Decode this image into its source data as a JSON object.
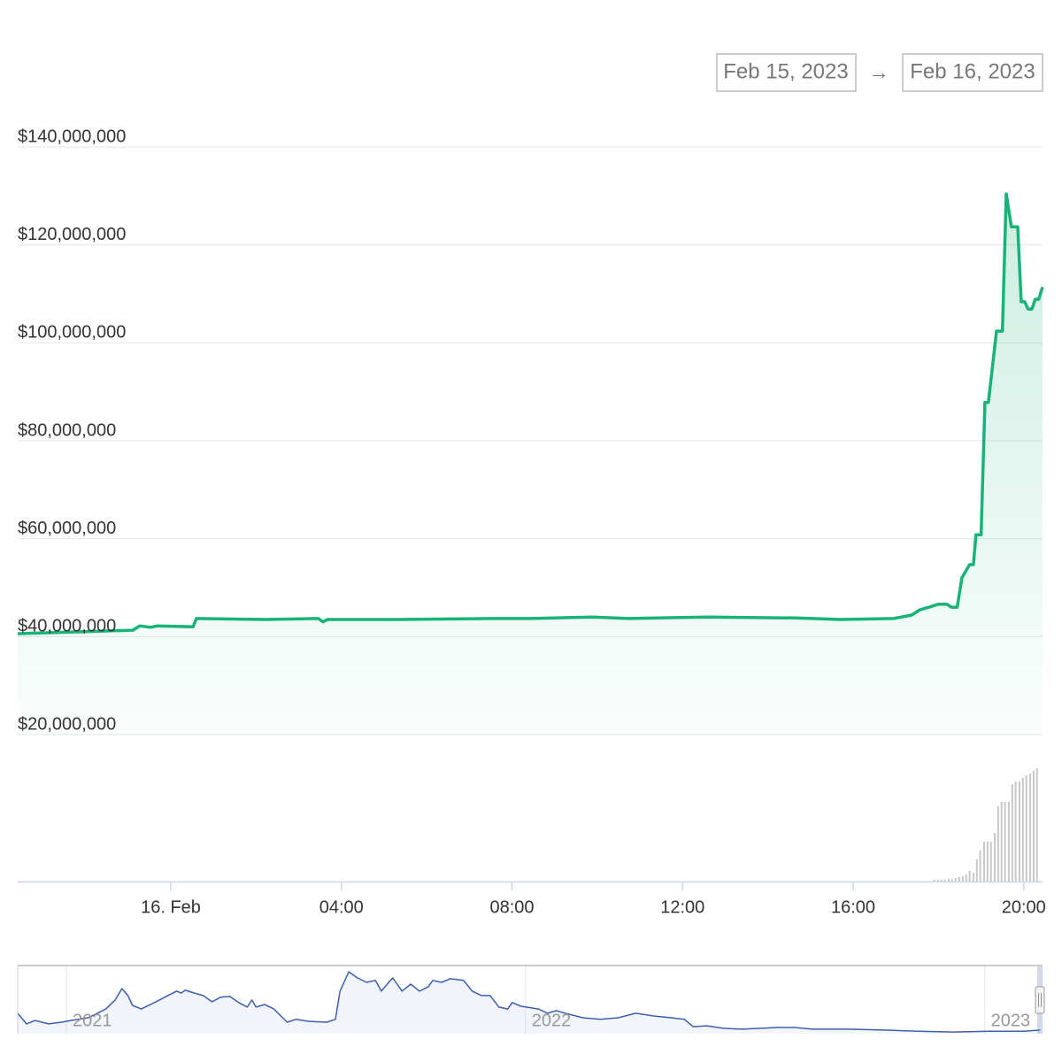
{
  "range_selector": {
    "from": "Feb 15, 2023",
    "separator": "→",
    "to": "Feb 16, 2023"
  },
  "chart_data": [
    {
      "type": "area",
      "color": "#19b37a",
      "x": [
        -3.59,
        -0.89,
        -0.73,
        -0.48,
        -0.31,
        0.52,
        0.6,
        2.22,
        3.46,
        3.57,
        3.67,
        5.33,
        7.61,
        8.44,
        9.9,
        10.73,
        12.59,
        14.67,
        15.71,
        16.95,
        17.37,
        17.57,
        17.78,
        17.99,
        18.2,
        18.3,
        18.44,
        18.55,
        18.73,
        18.82,
        18.88,
        19.0,
        19.09,
        19.17,
        19.36,
        19.5,
        19.59,
        19.71,
        19.86,
        19.94,
        20.02,
        20.1,
        20.19,
        20.27,
        20.35,
        20.44
      ],
      "values": [
        40600000,
        41300000,
        42200000,
        41900000,
        42200000,
        42000000,
        43700000,
        43500000,
        43700000,
        43000000,
        43500000,
        43500000,
        43700000,
        43700000,
        44000000,
        43700000,
        44000000,
        43800000,
        43500000,
        43700000,
        44400000,
        45500000,
        46000000,
        46600000,
        46600000,
        46000000,
        46000000,
        52000000,
        54700000,
        54700000,
        60800000,
        60800000,
        87800000,
        87800000,
        102400000,
        102400000,
        130400000,
        123700000,
        123700000,
        108400000,
        108400000,
        106900000,
        106900000,
        108900000,
        108900000,
        111400000
      ],
      "xlim": [
        -3.59,
        20.44
      ],
      "xticks": [
        {
          "value": 0,
          "label": "16. Feb"
        },
        {
          "value": 4,
          "label": "04:00"
        },
        {
          "value": 8,
          "label": "08:00"
        },
        {
          "value": 12,
          "label": "12:00"
        },
        {
          "value": 16,
          "label": "16:00"
        },
        {
          "value": 20,
          "label": "20:00"
        }
      ],
      "ylim": [
        20000000,
        140000000
      ],
      "yticks": [
        {
          "value": 20000000,
          "label": "$20,000,000"
        },
        {
          "value": 40000000,
          "label": "$40,000,000"
        },
        {
          "value": 60000000,
          "label": "$60,000,000"
        },
        {
          "value": 80000000,
          "label": "$80,000,000"
        },
        {
          "value": 100000000,
          "label": "$100,000,000"
        },
        {
          "value": 120000000,
          "label": "$120,000,000"
        },
        {
          "value": 140000000,
          "label": "$140,000,000"
        }
      ],
      "grid": true
    },
    {
      "type": "bar",
      "color": "#c8c8c8",
      "x": [
        17.9,
        17.99,
        18.07,
        18.15,
        18.24,
        18.32,
        18.4,
        18.49,
        18.57,
        18.65,
        18.73,
        18.82,
        18.9,
        18.98,
        19.07,
        19.15,
        19.23,
        19.32,
        19.4,
        19.48,
        19.56,
        19.65,
        19.73,
        19.81,
        19.9,
        19.98,
        20.06,
        20.15,
        20.23,
        20.31
      ],
      "values": [
        2,
        2,
        2,
        2,
        3,
        3,
        4,
        5,
        6,
        8,
        12,
        10,
        25,
        35,
        45,
        45,
        45,
        55,
        85,
        90,
        90,
        90,
        110,
        113,
        113,
        117,
        120,
        122,
        125,
        128
      ],
      "xlim": [
        -3.59,
        20.44
      ],
      "ylim": [
        0,
        131
      ]
    },
    {
      "type": "area",
      "color": "#3d5fb0",
      "x": [
        2020.894,
        2020.913,
        2020.932,
        2020.961,
        2020.99,
        2021.009,
        2021.048,
        2021.086,
        2021.106,
        2021.121,
        2021.134,
        2021.144,
        2021.163,
        2021.192,
        2021.221,
        2021.24,
        2021.25,
        2021.259,
        2021.279,
        2021.298,
        2021.317,
        2021.336,
        2021.356,
        2021.375,
        2021.394,
        2021.404,
        2021.413,
        2021.432,
        2021.452,
        2021.471,
        2021.481,
        2021.5,
        2021.529,
        2021.567,
        2021.586,
        2021.596,
        2021.615,
        2021.634,
        2021.654,
        2021.673,
        2021.686,
        2021.702,
        2021.711,
        2021.731,
        2021.75,
        2021.769,
        2021.788,
        2021.798,
        2021.817,
        2021.836,
        2021.865,
        2021.884,
        2021.904,
        2021.923,
        2021.942,
        2021.961,
        2021.971,
        2021.99,
        2022.028,
        2022.048,
        2022.067,
        2022.086,
        2022.125,
        2022.163,
        2022.202,
        2022.24,
        2022.279,
        2022.317,
        2022.346,
        2022.365,
        2022.394,
        2022.433,
        2022.471,
        2022.509,
        2022.548,
        2022.586,
        2022.625,
        2022.702,
        2022.779,
        2022.856,
        2022.933,
        2023.009,
        2023.086,
        2023.121
      ],
      "values": [
        730000000,
        350000000,
        470000000,
        350000000,
        410000000,
        470000000,
        570000000,
        880000000,
        1200000000,
        1610000000,
        1360000000,
        1010000000,
        880000000,
        1110000000,
        1360000000,
        1520000000,
        1450000000,
        1550000000,
        1450000000,
        1360000000,
        1140000000,
        1300000000,
        1330000000,
        1110000000,
        950000000,
        1200000000,
        950000000,
        1040000000,
        880000000,
        570000000,
        410000000,
        510000000,
        440000000,
        410000000,
        510000000,
        1520000000,
        2210000000,
        1990000000,
        1830000000,
        1900000000,
        1520000000,
        1830000000,
        1990000000,
        1520000000,
        1770000000,
        1520000000,
        1670000000,
        1900000000,
        1830000000,
        1960000000,
        1900000000,
        1520000000,
        1360000000,
        1360000000,
        950000000,
        880000000,
        1110000000,
        980000000,
        880000000,
        730000000,
        820000000,
        730000000,
        570000000,
        510000000,
        570000000,
        730000000,
        630000000,
        570000000,
        510000000,
        250000000,
        280000000,
        190000000,
        160000000,
        190000000,
        220000000,
        220000000,
        160000000,
        160000000,
        130000000,
        90000000,
        60000000,
        90000000,
        90000000,
        130000000
      ],
      "xlim": [
        2020.894,
        2023.126
      ],
      "xticks": [
        2021,
        2022,
        2023
      ],
      "ylim": [
        0,
        2400000000
      ],
      "grid": true
    }
  ]
}
